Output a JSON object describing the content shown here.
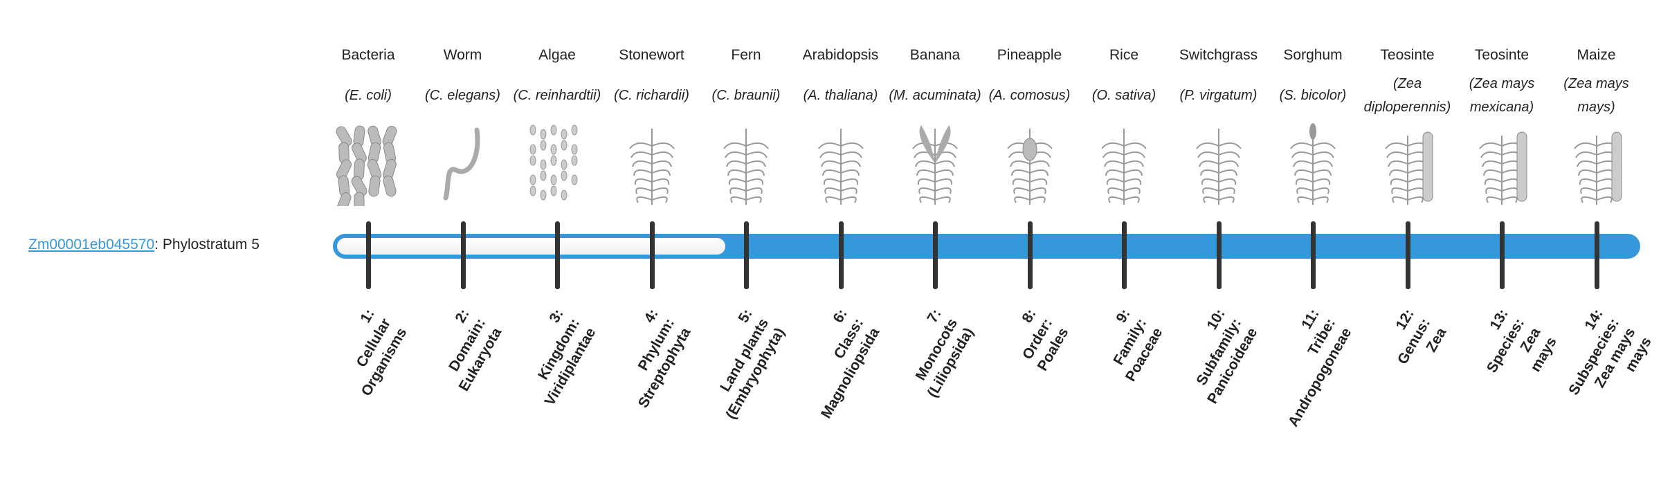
{
  "gene": {
    "id_link": "Zm00001eb045570",
    "suffix": ": Phylostratum 5",
    "phylostratum": 5
  },
  "colors": {
    "bar": "#3498db",
    "tick": "#333333",
    "link": "#3498db"
  },
  "strata": [
    {
      "common": "Bacteria",
      "latin": "(E. coli)",
      "icon": "bacteria-icon",
      "rank": [
        "1:",
        "Cellular",
        "Organisms"
      ]
    },
    {
      "common": "Worm",
      "latin": "(C. elegans)",
      "icon": "worm-icon",
      "rank": [
        "2:",
        "Domain:",
        "Eukaryota"
      ]
    },
    {
      "common": "Algae",
      "latin": "(C. reinhardtii)",
      "icon": "algae-icon",
      "rank": [
        "3:",
        "Kingdom:",
        "Viridiplantae"
      ]
    },
    {
      "common": "Stonewort",
      "latin": "(C. richardii)",
      "icon": "stonewort-icon",
      "rank": [
        "4:",
        "Phylum:",
        "Streptophyta"
      ]
    },
    {
      "common": "Fern",
      "latin": "(C. braunii)",
      "icon": "fern-icon",
      "rank": [
        "5:",
        "Land plants",
        "(Embryophyta)"
      ]
    },
    {
      "common": "Arabidopsis",
      "latin": "(A. thaliana)",
      "icon": "arabidopsis-icon",
      "rank": [
        "6:",
        "Class:",
        "Magnoliopsida"
      ]
    },
    {
      "common": "Banana",
      "latin": "(M. acuminata)",
      "icon": "banana-icon",
      "rank": [
        "7:",
        "Monocots",
        "(Liliopsida)"
      ]
    },
    {
      "common": "Pineapple",
      "latin": "(A. comosus)",
      "icon": "pineapple-icon",
      "rank": [
        "8:",
        "Order:",
        "Poales"
      ]
    },
    {
      "common": "Rice",
      "latin": "(O. sativa)",
      "icon": "rice-icon",
      "rank": [
        "9:",
        "Family:",
        "Poaceae"
      ]
    },
    {
      "common": "Switchgrass",
      "latin": "(P. virgatum)",
      "icon": "switchgrass-icon",
      "rank": [
        "10:",
        "Subfamily:",
        "Panicoideae"
      ]
    },
    {
      "common": "Sorghum",
      "latin": "(S. bicolor)",
      "icon": "sorghum-icon",
      "rank": [
        "11:",
        "Tribe:",
        "Andropogoneae"
      ]
    },
    {
      "common": "Teosinte",
      "latin": "(Zea diploperennis)",
      "icon": "teosinte-icon",
      "rank": [
        "12:",
        "Genus:",
        "Zea"
      ]
    },
    {
      "common": "Teosinte",
      "latin": "(Zea mays mexicana)",
      "icon": "teosinte-mexicana-icon",
      "rank": [
        "13:",
        "Species:",
        "Zea",
        "mays"
      ]
    },
    {
      "common": "Maize",
      "latin": "(Zea mays mays)",
      "icon": "maize-icon",
      "rank": [
        "14:",
        "Subspecies:",
        "Zea mays",
        "mays"
      ]
    }
  ]
}
